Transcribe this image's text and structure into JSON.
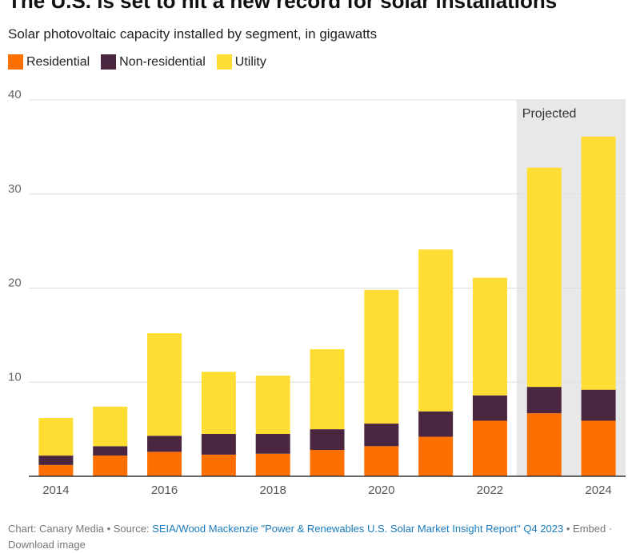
{
  "title": "The U.S. is set to hit a new record for solar installations",
  "subtitle": "Solar photovoltaic capacity installed by segment, in gigawatts",
  "footer": {
    "credit": "Chart: Canary Media",
    "source_label": "Source:",
    "source_link": "SEIA/Wood Mackenzie \"Power & Renewables U.S. Solar Market Insight Report\" Q4 2023",
    "extra": "Embed · Download image"
  },
  "chart_data": {
    "type": "bar",
    "stacked": true,
    "title": "The U.S. is set to hit a new record for solar installations",
    "subtitle": "Solar photovoltaic capacity installed by segment, in gigawatts",
    "categories": [
      "2014",
      "2015",
      "2016",
      "2017",
      "2018",
      "2019",
      "2020",
      "2021",
      "2022",
      "2023",
      "2024"
    ],
    "x_tick_labels": [
      "2014",
      "",
      "2016",
      "",
      "2018",
      "",
      "2020",
      "",
      "2022",
      "",
      "2024"
    ],
    "series": [
      {
        "name": "Residential",
        "color": "#ff6f00",
        "values": [
          1.2,
          2.2,
          2.6,
          2.3,
          2.4,
          2.8,
          3.2,
          4.2,
          5.9,
          6.7,
          5.9
        ]
      },
      {
        "name": "Non-residential",
        "color": "#4a2641",
        "values": [
          1.0,
          1.0,
          1.7,
          2.2,
          2.1,
          2.2,
          2.4,
          2.7,
          2.7,
          2.8,
          3.3
        ]
      },
      {
        "name": "Utility",
        "color": "#ffdd33",
        "values": [
          4.0,
          4.2,
          10.9,
          6.6,
          6.2,
          8.5,
          14.2,
          17.2,
          12.5,
          23.3,
          26.9
        ]
      }
    ],
    "ylim": [
      0,
      40
    ],
    "yticks": [
      10,
      20,
      30,
      40
    ],
    "xlabel": "",
    "ylabel": "",
    "annotation": {
      "label": "Projected",
      "categories": [
        "2023",
        "2024"
      ],
      "color": "#e8e8e8"
    },
    "grid": true,
    "legend_position": "top-left"
  }
}
